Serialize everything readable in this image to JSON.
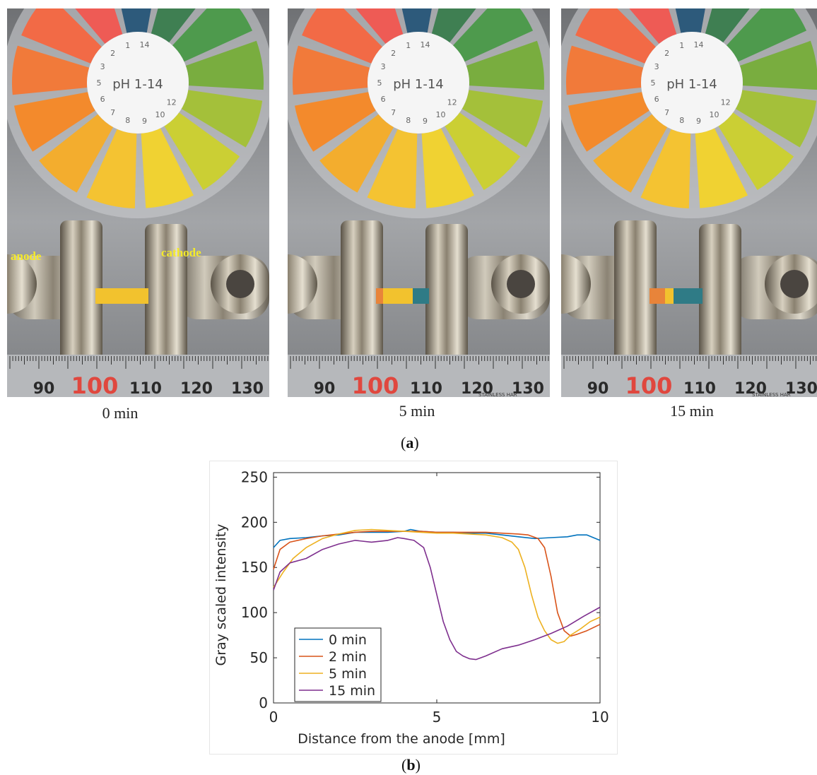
{
  "panel_a": {
    "label": "a",
    "wheel_text": "pH 1-14",
    "wheel_numbers": [
      "14",
      "1",
      "2",
      "3",
      "5",
      "6",
      "7",
      "8",
      "9",
      "10",
      "12"
    ],
    "ruler_ticks": [
      "90",
      "100",
      "110",
      "120",
      "130"
    ],
    "ruler_brand": "STAINLESS HAR",
    "strip_colors": {
      "yellow": "#f2c22e",
      "orange": "#e8843a",
      "teal": "#2f7b86"
    },
    "photos": [
      {
        "caption": "0 min",
        "labels": {
          "anode": "anode",
          "cathode": "cathode"
        }
      },
      {
        "caption": "5 min"
      },
      {
        "caption": "15 min"
      }
    ],
    "wheel_colors": [
      "#2d5a7b",
      "#3f7f52",
      "#4e9a4d",
      "#79ad3f",
      "#a4c03a",
      "#cbcf34",
      "#f0d232",
      "#f4c332",
      "#f3ad2e",
      "#f38a2c",
      "#f17a3a",
      "#f26a46",
      "#ee5b55"
    ]
  },
  "panel_b": {
    "label": "b"
  },
  "chart_data": {
    "type": "line",
    "xlabel": "Distance from the anode [mm]",
    "ylabel": "Gray scaled intensity",
    "xlim": [
      0,
      10
    ],
    "ylim": [
      0,
      255
    ],
    "xticks": [
      "0",
      "5",
      "10"
    ],
    "yticks": [
      "0",
      "50",
      "100",
      "150",
      "200",
      "250"
    ],
    "grid": false,
    "legend_position": "lower-left",
    "series": [
      {
        "name": "0 min",
        "color": "#0072bd",
        "x": [
          0,
          0.2,
          0.5,
          1,
          1.5,
          2,
          2.5,
          3,
          3.5,
          4,
          4.2,
          4.5,
          5,
          5.5,
          6,
          6.5,
          7,
          7.5,
          8,
          8.5,
          9,
          9.3,
          9.6,
          10
        ],
        "y": [
          172,
          180,
          182,
          183,
          185,
          186,
          189,
          189,
          189,
          190,
          192,
          190,
          189,
          189,
          188,
          188,
          186,
          184,
          182,
          183,
          184,
          186,
          186,
          180
        ]
      },
      {
        "name": "2 min",
        "color": "#d95319",
        "x": [
          0,
          0.2,
          0.5,
          1,
          1.5,
          2,
          2.5,
          3,
          3.5,
          4,
          4.5,
          5,
          5.5,
          6,
          6.5,
          7,
          7.5,
          7.8,
          8.1,
          8.3,
          8.5,
          8.7,
          8.9,
          9.1,
          9.3,
          9.6,
          10
        ],
        "y": [
          148,
          170,
          178,
          182,
          185,
          187,
          189,
          190,
          190,
          190,
          190,
          189,
          189,
          189,
          189,
          188,
          187,
          186,
          182,
          172,
          140,
          100,
          80,
          74,
          76,
          80,
          87
        ]
      },
      {
        "name": "5 min",
        "color": "#edb120",
        "x": [
          0,
          0.3,
          0.6,
          1,
          1.5,
          2,
          2.5,
          3,
          3.5,
          4,
          4.5,
          5,
          5.5,
          6,
          6.5,
          7,
          7.3,
          7.5,
          7.7,
          7.9,
          8.1,
          8.3,
          8.5,
          8.7,
          8.9,
          9.1,
          9.4,
          9.7,
          10
        ],
        "y": [
          128,
          145,
          160,
          172,
          182,
          187,
          191,
          192,
          191,
          190,
          189,
          188,
          188,
          187,
          186,
          183,
          178,
          170,
          150,
          120,
          95,
          80,
          70,
          66,
          68,
          75,
          82,
          90,
          95
        ]
      },
      {
        "name": "15 min",
        "color": "#7e2f8e",
        "x": [
          0,
          0.2,
          0.5,
          1,
          1.5,
          2,
          2.5,
          3,
          3.5,
          3.8,
          4,
          4.3,
          4.6,
          4.8,
          5,
          5.2,
          5.4,
          5.6,
          5.8,
          6,
          6.2,
          6.5,
          7,
          7.5,
          8,
          8.5,
          9,
          9.5,
          10
        ],
        "y": [
          125,
          145,
          155,
          160,
          170,
          176,
          180,
          178,
          180,
          183,
          182,
          180,
          172,
          150,
          120,
          90,
          70,
          57,
          52,
          49,
          48,
          52,
          60,
          64,
          70,
          77,
          85,
          96,
          106
        ]
      }
    ]
  }
}
